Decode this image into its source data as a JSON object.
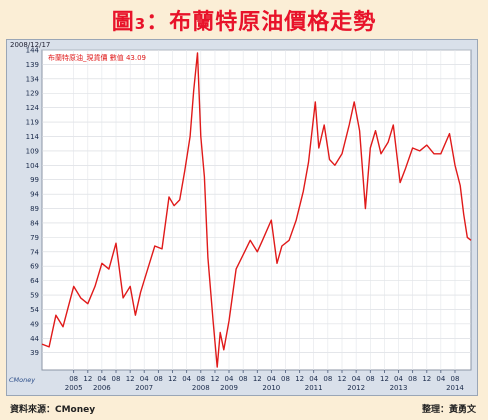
{
  "header": {
    "title_prefix": "圖",
    "title_num": "3",
    "title_text": "：布蘭特原油價格走勢"
  },
  "panel": {
    "date_stamp": "2008/12/17",
    "watermark": "CMoney"
  },
  "legend_text": "布蘭特原油_現貨價 數值 43.09",
  "footer": {
    "source": "資料來源：CMoney",
    "editor": "整理：黃勇文"
  },
  "colors": {
    "line": "#e01a1a",
    "title": "#e8132a",
    "panel_bg": "#d9e0ea",
    "plot_bg": "#ffffff"
  },
  "chart_data": {
    "type": "line",
    "title": "",
    "xlabel": "",
    "ylabel": "",
    "ylim": [
      33,
      144
    ],
    "yticks": [
      144,
      139,
      134,
      129,
      124,
      119,
      114,
      109,
      104,
      99,
      94,
      89,
      84,
      79,
      74,
      69,
      64,
      59,
      54,
      49,
      44,
      39
    ],
    "xlim": [
      "2004-11-01",
      "2014-12-17"
    ],
    "xticks": [
      {
        "date": "2005-08-01",
        "label": "08",
        "year": "2005"
      },
      {
        "date": "2005-12-01",
        "label": "12",
        "year": ""
      },
      {
        "date": "2006-04-01",
        "label": "04",
        "year": "2006"
      },
      {
        "date": "2006-08-01",
        "label": "08",
        "year": ""
      },
      {
        "date": "2006-12-01",
        "label": "12",
        "year": ""
      },
      {
        "date": "2007-04-01",
        "label": "04",
        "year": "2007"
      },
      {
        "date": "2007-08-01",
        "label": "08",
        "year": ""
      },
      {
        "date": "2007-12-01",
        "label": "12",
        "year": ""
      },
      {
        "date": "2008-04-01",
        "label": "04",
        "year": ""
      },
      {
        "date": "2008-08-01",
        "label": "08",
        "year": "2008"
      },
      {
        "date": "2008-12-01",
        "label": "12",
        "year": ""
      },
      {
        "date": "2009-04-01",
        "label": "04",
        "year": "2009"
      },
      {
        "date": "2009-08-01",
        "label": "08",
        "year": ""
      },
      {
        "date": "2009-12-01",
        "label": "12",
        "year": ""
      },
      {
        "date": "2010-04-01",
        "label": "04",
        "year": "2010"
      },
      {
        "date": "2010-08-01",
        "label": "08",
        "year": ""
      },
      {
        "date": "2010-12-01",
        "label": "12",
        "year": ""
      },
      {
        "date": "2011-04-01",
        "label": "04",
        "year": "2011"
      },
      {
        "date": "2011-08-01",
        "label": "08",
        "year": ""
      },
      {
        "date": "2011-12-01",
        "label": "12",
        "year": ""
      },
      {
        "date": "2012-04-01",
        "label": "04",
        "year": "2012"
      },
      {
        "date": "2012-08-01",
        "label": "08",
        "year": ""
      },
      {
        "date": "2012-12-01",
        "label": "12",
        "year": ""
      },
      {
        "date": "2013-04-01",
        "label": "04",
        "year": "2013"
      },
      {
        "date": "2013-08-01",
        "label": "08",
        "year": ""
      },
      {
        "date": "2013-12-01",
        "label": "12",
        "year": ""
      },
      {
        "date": "2014-04-01",
        "label": "04",
        "year": ""
      },
      {
        "date": "2014-08-01",
        "label": "08",
        "year": "2014"
      }
    ],
    "grid": true,
    "series": [
      {
        "values": [
          {
            "x": "2004-11-01",
            "y": 42
          },
          {
            "x": "2005-01-01",
            "y": 41
          },
          {
            "x": "2005-03-01",
            "y": 52
          },
          {
            "x": "2005-05-01",
            "y": 48
          },
          {
            "x": "2005-08-01",
            "y": 62
          },
          {
            "x": "2005-10-01",
            "y": 58
          },
          {
            "x": "2005-12-01",
            "y": 56
          },
          {
            "x": "2006-02-01",
            "y": 62
          },
          {
            "x": "2006-04-01",
            "y": 70
          },
          {
            "x": "2006-06-01",
            "y": 68
          },
          {
            "x": "2006-08-01",
            "y": 77
          },
          {
            "x": "2006-10-01",
            "y": 58
          },
          {
            "x": "2006-12-01",
            "y": 62
          },
          {
            "x": "2007-01-15",
            "y": 52
          },
          {
            "x": "2007-03-01",
            "y": 60
          },
          {
            "x": "2007-05-01",
            "y": 68
          },
          {
            "x": "2007-07-01",
            "y": 76
          },
          {
            "x": "2007-09-01",
            "y": 75
          },
          {
            "x": "2007-11-01",
            "y": 93
          },
          {
            "x": "2007-12-15",
            "y": 90
          },
          {
            "x": "2008-02-01",
            "y": 92
          },
          {
            "x": "2008-03-15",
            "y": 102
          },
          {
            "x": "2008-05-01",
            "y": 114
          },
          {
            "x": "2008-06-01",
            "y": 130
          },
          {
            "x": "2008-07-03",
            "y": 143
          },
          {
            "x": "2008-08-01",
            "y": 114
          },
          {
            "x": "2008-09-01",
            "y": 100
          },
          {
            "x": "2008-10-01",
            "y": 72
          },
          {
            "x": "2008-11-15",
            "y": 50
          },
          {
            "x": "2008-12-20",
            "y": 34
          },
          {
            "x": "2009-01-15",
            "y": 46
          },
          {
            "x": "2009-02-15",
            "y": 40
          },
          {
            "x": "2009-04-01",
            "y": 50
          },
          {
            "x": "2009-06-01",
            "y": 68
          },
          {
            "x": "2009-08-01",
            "y": 73
          },
          {
            "x": "2009-10-01",
            "y": 78
          },
          {
            "x": "2009-12-01",
            "y": 74
          },
          {
            "x": "2010-01-15",
            "y": 78
          },
          {
            "x": "2010-04-01",
            "y": 85
          },
          {
            "x": "2010-05-20",
            "y": 70
          },
          {
            "x": "2010-07-01",
            "y": 76
          },
          {
            "x": "2010-09-01",
            "y": 78
          },
          {
            "x": "2010-11-01",
            "y": 85
          },
          {
            "x": "2011-01-01",
            "y": 95
          },
          {
            "x": "2011-02-15",
            "y": 105
          },
          {
            "x": "2011-04-15",
            "y": 126
          },
          {
            "x": "2011-05-15",
            "y": 110
          },
          {
            "x": "2011-07-01",
            "y": 118
          },
          {
            "x": "2011-08-15",
            "y": 106
          },
          {
            "x": "2011-10-01",
            "y": 104
          },
          {
            "x": "2011-12-01",
            "y": 108
          },
          {
            "x": "2012-02-01",
            "y": 118
          },
          {
            "x": "2012-03-15",
            "y": 126
          },
          {
            "x": "2012-05-01",
            "y": 116
          },
          {
            "x": "2012-06-20",
            "y": 89
          },
          {
            "x": "2012-08-01",
            "y": 110
          },
          {
            "x": "2012-09-15",
            "y": 116
          },
          {
            "x": "2012-11-01",
            "y": 108
          },
          {
            "x": "2013-01-01",
            "y": 112
          },
          {
            "x": "2013-02-15",
            "y": 118
          },
          {
            "x": "2013-04-15",
            "y": 98
          },
          {
            "x": "2013-06-01",
            "y": 103
          },
          {
            "x": "2013-08-01",
            "y": 110
          },
          {
            "x": "2013-10-01",
            "y": 109
          },
          {
            "x": "2013-12-01",
            "y": 111
          },
          {
            "x": "2014-02-01",
            "y": 108
          },
          {
            "x": "2014-04-01",
            "y": 108
          },
          {
            "x": "2014-06-15",
            "y": 115
          },
          {
            "x": "2014-08-01",
            "y": 104
          },
          {
            "x": "2014-09-15",
            "y": 97
          },
          {
            "x": "2014-10-15",
            "y": 87
          },
          {
            "x": "2014-11-15",
            "y": 79
          },
          {
            "x": "2014-12-17",
            "y": 78
          }
        ]
      }
    ]
  }
}
